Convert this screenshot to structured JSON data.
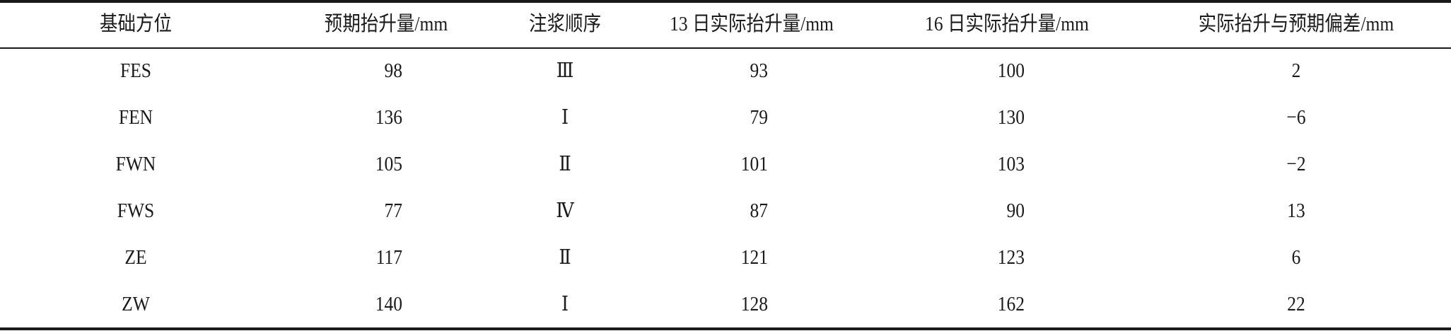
{
  "table": {
    "headers": [
      "基础方位",
      "预期抬升量/mm",
      "注浆顺序",
      "13 日实际抬升量/mm",
      "16 日实际抬升量/mm",
      "实际抬升与预期偏差/mm"
    ],
    "rows": [
      [
        "FES",
        "98",
        "Ⅲ",
        "93",
        "100",
        "2"
      ],
      [
        "FEN",
        "136",
        "Ⅰ",
        "79",
        "130",
        "−6"
      ],
      [
        "FWN",
        "105",
        "Ⅱ",
        "101",
        "103",
        "−2"
      ],
      [
        "FWS",
        "77",
        "Ⅳ",
        "87",
        "90",
        "13"
      ],
      [
        "ZE",
        "117",
        "Ⅱ",
        "121",
        "123",
        "6"
      ],
      [
        "ZW",
        "140",
        "Ⅰ",
        "128",
        "162",
        "22"
      ]
    ]
  }
}
